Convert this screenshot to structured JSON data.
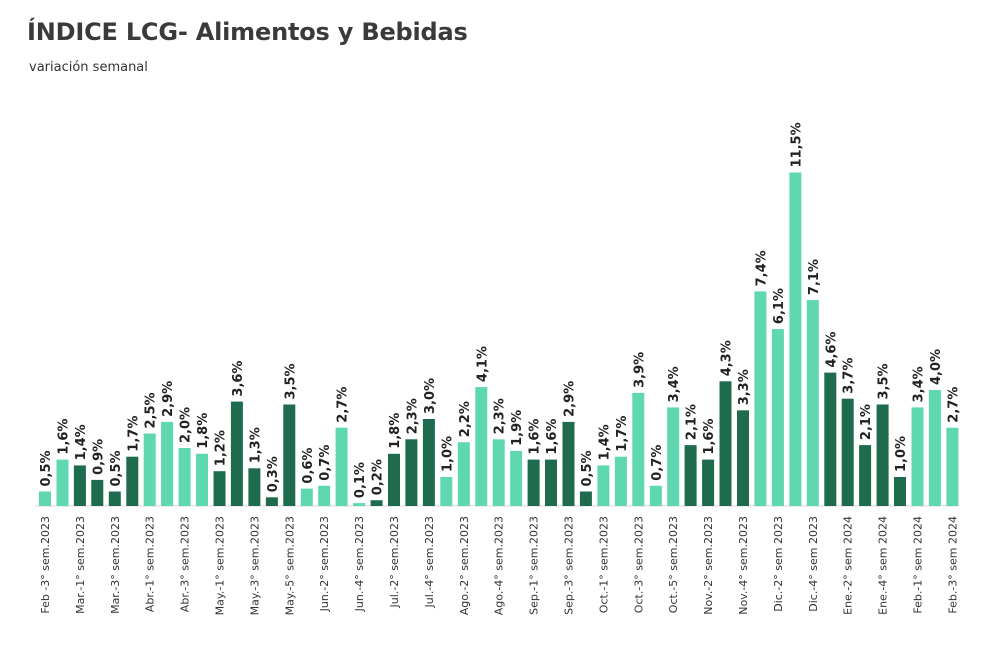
{
  "title": "ÍNDICE LCG- Alimentos y Bebidas",
  "subtitle": "variación semanal",
  "colors": {
    "light": "#5fd7b0",
    "dark": "#1e6b4e",
    "baseline": "#d9d9d9"
  },
  "chart_data": {
    "type": "bar",
    "title": "ÍNDICE LCG- Alimentos y Bebidas",
    "subtitle": "variación semanal",
    "ylim": [
      0,
      12
    ],
    "grid": false,
    "legend": "none",
    "categories": [
      "Feb -3° sem.2023",
      "",
      "Mar.-1° sem.2023",
      "",
      "Mar.-3° sem.2023",
      "",
      "Abr.-1° sem.2023",
      "",
      "Abr.-3° sem.2023",
      "",
      "May.-1° sem.2023",
      "",
      "May.-3° sem.2023",
      "",
      "May.-5° sem.2023",
      "",
      "Jun.-2° sem.2023",
      "",
      "Jun.-4° sem.2023",
      "",
      "Jul.-2° sem.2023",
      "",
      "Jul.-4° sem.2023",
      "",
      "Ago.-2° sem.2023",
      "",
      "Ago.-4° sem.2023",
      "",
      "Sep.-1° sem.2023",
      "",
      "Sep.-3° sem.2023",
      "",
      "Oct.-1° sem.2023",
      "",
      "Oct.-3° sem.2023",
      "",
      "Oct.-5° sem.2023",
      "",
      "Nov.-2° sem.2023",
      "",
      "Nov.-4° sem.2023",
      "",
      "Dic.-2° sem 2023",
      "",
      "Dic.-4° sem 2023",
      "",
      "Ene.-2° sem 2024",
      "",
      "Ene.-4° sem 2024",
      "",
      "Feb.-1° sem 2024",
      "",
      "Feb.-3° sem 2024"
    ],
    "values": [
      0.5,
      1.6,
      1.4,
      0.9,
      0.5,
      1.7,
      2.5,
      2.9,
      2.0,
      1.8,
      1.2,
      3.6,
      1.3,
      0.3,
      3.5,
      0.6,
      0.7,
      2.7,
      0.1,
      0.2,
      1.8,
      2.3,
      3.0,
      1.0,
      2.2,
      4.1,
      2.3,
      1.9,
      1.6,
      1.6,
      2.9,
      0.5,
      1.4,
      1.7,
      3.9,
      0.7,
      3.4,
      2.1,
      1.6,
      4.3,
      3.3,
      7.4,
      6.1,
      11.5,
      7.1,
      4.6,
      3.7,
      2.1,
      3.5,
      1.0,
      3.4,
      4.0,
      2.7
    ],
    "labels": [
      "0,5%",
      "1,6%",
      "1,4%",
      "0,9%",
      "0,5%",
      "1,7%",
      "2,5%",
      "2,9%",
      "2,0%",
      "1,8%",
      "1,2%",
      "3,6%",
      "1,3%",
      "0,3%",
      "3,5%",
      "0,6%",
      "0,7%",
      "2,7%",
      "0,1%",
      "0,2%",
      "1,8%",
      "2,3%",
      "3,0%",
      "1,0%",
      "2,2%",
      "4,1%",
      "2,3%",
      "1,9%",
      "1,6%",
      "1,6%",
      "2,9%",
      "0,5%",
      "1,4%",
      "1,7%",
      "3,9%",
      "0,7%",
      "3,4%",
      "2,1%",
      "1,6%",
      "4,3%",
      "3,3%",
      "7,4%",
      "6,1%",
      "11,5%",
      "7,1%",
      "4,6%",
      "3,7%",
      "2,1%",
      "3,5%",
      "1,0%",
      "3,4%",
      "4,0%",
      "2,7%"
    ],
    "shades": [
      "light",
      "light",
      "dark",
      "dark",
      "dark",
      "dark",
      "light",
      "light",
      "light",
      "light",
      "dark",
      "dark",
      "dark",
      "dark",
      "dark",
      "light",
      "light",
      "light",
      "light",
      "dark",
      "dark",
      "dark",
      "dark",
      "light",
      "light",
      "light",
      "light",
      "light",
      "dark",
      "dark",
      "dark",
      "dark",
      "light",
      "light",
      "light",
      "light",
      "light",
      "dark",
      "dark",
      "dark",
      "dark",
      "light",
      "light",
      "light",
      "light",
      "dark",
      "dark",
      "dark",
      "dark",
      "dark",
      "light",
      "light",
      "light"
    ]
  }
}
